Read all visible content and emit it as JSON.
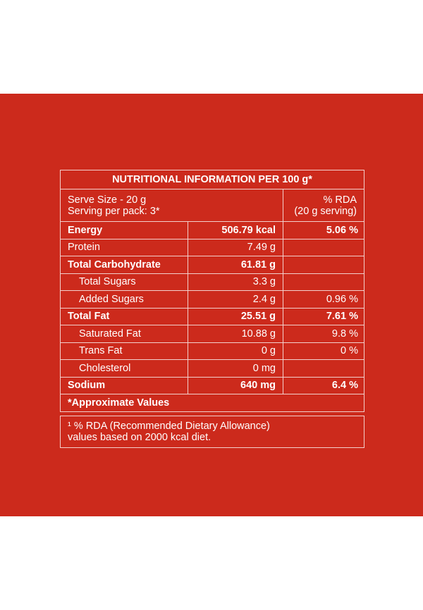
{
  "table": {
    "title": "NUTRITIONAL INFORMATION PER 100 g*",
    "serve": [
      "Serve Size - 20 g",
      "Serving per pack: 3*"
    ],
    "rda_header": [
      "% RDA",
      "(20 g serving)"
    ],
    "rows": [
      {
        "style": "bold",
        "cells": [
          "Energy",
          "506.79 kcal",
          "5.06 %"
        ]
      },
      {
        "style": "plain",
        "cells": [
          "Protein",
          "7.49 g",
          null
        ]
      },
      {
        "style": "bold",
        "cells": [
          "Total Carbohydrate",
          "61.81 g",
          null
        ]
      },
      {
        "style": "indent",
        "cells": [
          "Total Sugars",
          "3.3 g",
          null
        ]
      },
      {
        "style": "indent",
        "cells": [
          "Added Sugars",
          "2.4 g",
          "0.96 %"
        ]
      },
      {
        "style": "bold",
        "cells": [
          "Total Fat",
          "25.51 g",
          "7.61 %"
        ]
      },
      {
        "style": "indent",
        "cells": [
          "Saturated Fat",
          "10.88 g",
          "9.8 %"
        ]
      },
      {
        "style": "indent",
        "cells": [
          "Trans Fat",
          "0 g",
          "0 %"
        ]
      },
      {
        "style": "indent",
        "cells": [
          "Cholesterol",
          "0 mg",
          null
        ]
      },
      {
        "style": "bold",
        "cells": [
          "Sodium",
          "640 mg",
          "6.4 %"
        ]
      }
    ],
    "approx": "*Approximate Values",
    "footnote": [
      "¹ % RDA (Recommended Dietary Allowance)",
      "values based on 2000 kcal diet."
    ]
  }
}
